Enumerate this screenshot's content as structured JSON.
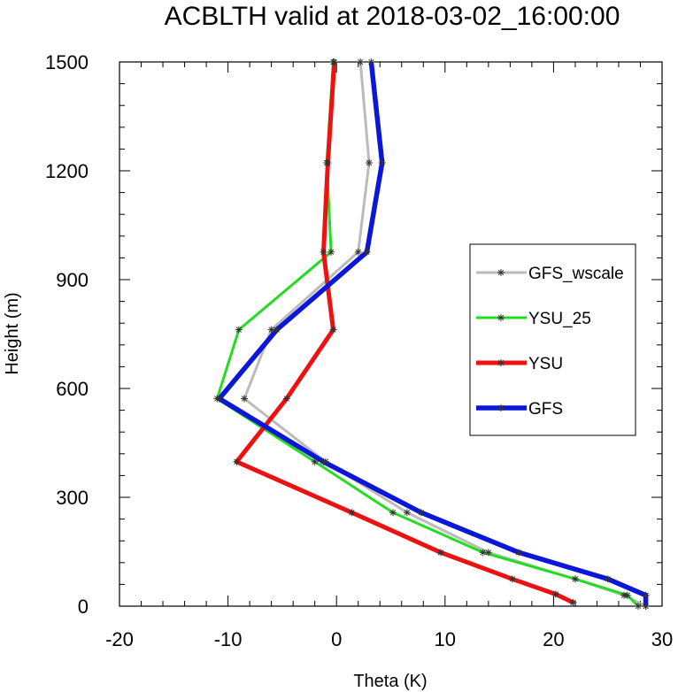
{
  "chart_data": {
    "type": "line",
    "title": "ACBLTH valid at 2018-03-02_16:00:00",
    "xlabel": "Theta (K)",
    "ylabel": "Height (m)",
    "xlim": [
      -20,
      30
    ],
    "ylim": [
      0,
      1500
    ],
    "x_ticks": [
      -20,
      -10,
      0,
      10,
      20,
      30
    ],
    "y_ticks": [
      0,
      300,
      600,
      900,
      1200,
      1500
    ],
    "legend_position": "right",
    "series": [
      {
        "name": "GFS_wscale",
        "color": "#bbbbbb",
        "x": [
          28.5,
          26.5,
          22.0,
          14.0,
          6.5,
          -1.0,
          -8.5,
          -6.0,
          2.0,
          3.0,
          2.2
        ],
        "y": [
          0,
          30,
          75,
          148,
          258,
          398,
          572,
          762,
          976,
          1222,
          1500
        ]
      },
      {
        "name": "YSU_25",
        "color": "#22dd22",
        "x": [
          27.8,
          26.8,
          22.0,
          13.5,
          5.2,
          -2.0,
          -11.0,
          -9.0,
          -0.5,
          -0.9,
          -0.3
        ],
        "y": [
          0,
          30,
          75,
          148,
          258,
          398,
          572,
          762,
          976,
          1222,
          1500
        ]
      },
      {
        "name": "YSU",
        "color": "#ee1111",
        "x": [
          21.8,
          20.2,
          16.2,
          9.6,
          1.4,
          -9.2,
          -4.6,
          -0.3,
          -1.2,
          -0.8,
          -0.2
        ],
        "y": [
          10,
          33,
          75,
          148,
          258,
          398,
          572,
          762,
          976,
          1222,
          1500
        ]
      },
      {
        "name": "GFS",
        "color": "#0a16d8",
        "x": [
          28.5,
          28.5,
          25.0,
          16.8,
          7.8,
          -1.2,
          -10.8,
          -5.5,
          2.8,
          4.2,
          3.2
        ],
        "y": [
          0,
          30,
          75,
          148,
          258,
          398,
          572,
          762,
          976,
          1222,
          1500
        ]
      }
    ]
  }
}
